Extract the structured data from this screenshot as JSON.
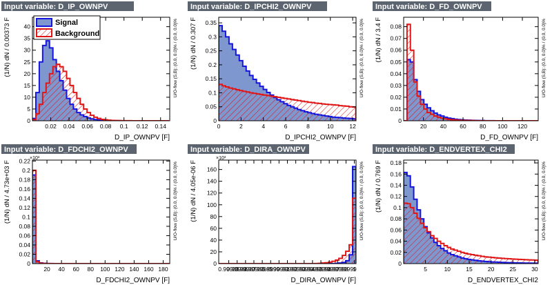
{
  "colors": {
    "title_bg": "#5c6470",
    "title_fg": "#ffffff",
    "signal_fill": "#7f97cf",
    "signal_line": "#1515dd",
    "background_line": "#e01515",
    "background_hatch": "#e01515"
  },
  "legend": {
    "signal": "Signal",
    "background": "Background"
  },
  "chart_data": [
    {
      "type": "histogram",
      "title": "Input variable: D_IP_OWNPV",
      "xlabel": "D_IP_OWNPV",
      "xunit": "[F]",
      "ylabel": "(1/N) dN / 0.00373 F",
      "uoflow": "U/O-flow (S,B): (0.0, 0.0)% / (0.0, 0.0)%",
      "xlim": [
        0,
        0.15
      ],
      "ylim": [
        0,
        44
      ],
      "xticks": [
        0.02,
        0.04,
        0.06,
        0.08,
        0.1,
        0.12,
        0.14
      ],
      "xticklabels": [
        "0.02",
        "0.04",
        "0.06",
        "0.08",
        "0.1",
        "0.12",
        "0.14"
      ],
      "yticks": [
        0,
        5,
        10,
        15,
        20,
        25,
        30,
        35,
        40
      ],
      "yticklabels": [
        "0",
        "5",
        "10",
        "15",
        "20",
        "25",
        "30",
        "35",
        "40"
      ],
      "exponent": "",
      "has_legend": true,
      "bin_edges": [
        0,
        0.00373,
        0.00746,
        0.01119,
        0.01492,
        0.01865,
        0.02238,
        0.02611,
        0.02984,
        0.03357,
        0.0373,
        0.04103,
        0.04476,
        0.04849,
        0.05222,
        0.05595,
        0.05968,
        0.06341,
        0.06714,
        0.07087,
        0.0746,
        0.07833,
        0.08206,
        0.08579,
        0.08952,
        0.09325,
        0.09698,
        0.10071,
        0.10444,
        0.10817,
        0.1119,
        0.11563,
        0.11936,
        0.12309,
        0.12682,
        0.13055,
        0.13428,
        0.13801,
        0.14174,
        0.14547,
        0.1492
      ],
      "series": [
        {
          "name": "Signal",
          "values": [
            1,
            12,
            25,
            32,
            34,
            31,
            26,
            21,
            17,
            13,
            9.5,
            7,
            5,
            3.5,
            2.5,
            1.8,
            1.2,
            0.8,
            0.5,
            0.35,
            0.2,
            0.12,
            0.08,
            0.05,
            0.03,
            0.02,
            0.01,
            0.01,
            0,
            0,
            0,
            0,
            0,
            0,
            0,
            0,
            0,
            0,
            0,
            0
          ]
        },
        {
          "name": "Background",
          "values": [
            0.5,
            3,
            7,
            12,
            16,
            20,
            23,
            24,
            23,
            21,
            18,
            15,
            12,
            9.5,
            7,
            5,
            3.5,
            2.3,
            1.5,
            1,
            0.6,
            0.4,
            0.25,
            0.15,
            0.1,
            0.06,
            0.04,
            0.03,
            0.02,
            0.01,
            0.01,
            0,
            0,
            0,
            0,
            0,
            0,
            0,
            0,
            0
          ]
        }
      ]
    },
    {
      "type": "histogram",
      "title": "Input variable: D_IPCHI2_OWNPV",
      "xlabel": "D_IPCHI2_OWNPV",
      "xunit": "[F]",
      "ylabel": "(1/N) dN / 0.307 F",
      "uoflow": "U/O-flow (S,B): (0.0, 0.0)% / (0.0, 0.0)%",
      "xlim": [
        0,
        12.3
      ],
      "ylim": [
        0,
        0.37
      ],
      "xticks": [
        0,
        2,
        4,
        6,
        8,
        10,
        12
      ],
      "xticklabels": [
        "0",
        "2",
        "4",
        "6",
        "8",
        "10",
        "12"
      ],
      "yticks": [
        0,
        0.05,
        0.1,
        0.15,
        0.2,
        0.25,
        0.3,
        0.35
      ],
      "yticklabels": [
        "0",
        "0.05",
        "0.1",
        "0.15",
        "0.2",
        "0.25",
        "0.3",
        "0.35"
      ],
      "exponent": "",
      "has_legend": false,
      "bin_edges": [
        0,
        0.307,
        0.614,
        0.921,
        1.228,
        1.535,
        1.842,
        2.149,
        2.456,
        2.763,
        3.07,
        3.377,
        3.684,
        3.991,
        4.298,
        4.605,
        4.912,
        5.219,
        5.526,
        5.833,
        6.14,
        6.447,
        6.754,
        7.061,
        7.368,
        7.675,
        7.982,
        8.289,
        8.596,
        8.903,
        9.21,
        9.517,
        9.824,
        10.131,
        10.438,
        10.745,
        11.052,
        11.359,
        11.666,
        11.973,
        12.28
      ],
      "series": [
        {
          "name": "Signal",
          "values": [
            0.34,
            0.32,
            0.3,
            0.275,
            0.255,
            0.235,
            0.215,
            0.195,
            0.178,
            0.162,
            0.148,
            0.135,
            0.123,
            0.112,
            0.101,
            0.092,
            0.083,
            0.075,
            0.068,
            0.061,
            0.055,
            0.05,
            0.045,
            0.04,
            0.036,
            0.032,
            0.029,
            0.026,
            0.023,
            0.021,
            0.019,
            0.017,
            0.015,
            0.013,
            0.012,
            0.011,
            0.01,
            0.009,
            0.008,
            0.007
          ]
        },
        {
          "name": "Background",
          "values": [
            0.13,
            0.125,
            0.121,
            0.117,
            0.114,
            0.111,
            0.108,
            0.105,
            0.103,
            0.1,
            0.098,
            0.096,
            0.094,
            0.092,
            0.09,
            0.088,
            0.086,
            0.084,
            0.082,
            0.08,
            0.078,
            0.076,
            0.074,
            0.072,
            0.07,
            0.068,
            0.066,
            0.065,
            0.063,
            0.062,
            0.06,
            0.059,
            0.058,
            0.057,
            0.056,
            0.054,
            0.053,
            0.052,
            0.05,
            0.049
          ]
        }
      ]
    },
    {
      "type": "histogram",
      "title": "Input variable: D_FD_OWNPV",
      "xlabel": "D_FD_OWNPV",
      "xunit": "[F]",
      "ylabel": "(1/N) dN / 3.4 F",
      "uoflow": "U/O-flow (S,B): (0.0, 0.0)% / (0.0, 0.0)%",
      "xlim": [
        0,
        136
      ],
      "ylim": [
        0,
        0.088
      ],
      "xticks": [
        20,
        40,
        60,
        80,
        100,
        120
      ],
      "xticklabels": [
        "20",
        "40",
        "60",
        "80",
        "100",
        "120"
      ],
      "yticks": [
        0,
        0.01,
        0.02,
        0.03,
        0.04,
        0.05,
        0.06,
        0.07,
        0.08
      ],
      "yticklabels": [
        "0",
        "0.01",
        "0.02",
        "0.03",
        "0.04",
        "0.05",
        "0.06",
        "0.07",
        "0.08"
      ],
      "exponent": "",
      "has_legend": false,
      "bin_edges": [
        0,
        3.4,
        6.8,
        10.2,
        13.6,
        17,
        20.4,
        23.8,
        27.2,
        30.6,
        34,
        37.4,
        40.8,
        44.2,
        47.6,
        51,
        54.4,
        57.8,
        61.2,
        64.6,
        68,
        71.4,
        74.8,
        78.2,
        81.6,
        85,
        88.4,
        91.8,
        95.2,
        98.6,
        102,
        105.4,
        108.8,
        112.2,
        115.6,
        119,
        122.4,
        125.8,
        129.2,
        132.6,
        136
      ],
      "series": [
        {
          "name": "Signal",
          "values": [
            0,
            0.052,
            0.05,
            0.035,
            0.025,
            0.018,
            0.014,
            0.011,
            0.0085,
            0.0065,
            0.005,
            0.004,
            0.003,
            0.0023,
            0.0018,
            0.0013,
            0.001,
            0.0008,
            0.0006,
            0.0005,
            0.0004,
            0.0003,
            0.0002,
            0.0002,
            0.0001,
            0.0001,
            0.0001,
            0,
            0,
            0,
            0,
            0,
            0,
            0,
            0,
            0,
            0,
            0,
            0,
            0
          ]
        },
        {
          "name": "Background",
          "values": [
            0,
            0.082,
            0.06,
            0.033,
            0.021,
            0.014,
            0.01,
            0.007,
            0.0055,
            0.004,
            0.003,
            0.0022,
            0.0016,
            0.0012,
            0.0009,
            0.0007,
            0.0005,
            0.0004,
            0.0003,
            0.0002,
            0.0002,
            0.0001,
            0.0001,
            0,
            0,
            0,
            0,
            0,
            0,
            0,
            0,
            0,
            0,
            0,
            0,
            0,
            0,
            0,
            0,
            0
          ]
        }
      ]
    },
    {
      "type": "histogram",
      "title": "Input variable: D_FDCHI2_OWNPV",
      "xlabel": "D_FDCHI2_OWNPV",
      "xunit": "[F]",
      "ylabel": "(1/N) dN / 4.73e+03 F",
      "uoflow": "U/O-flow (S,B): (0.0, 0.0)% / (0.0, 0.0)%",
      "xlim": [
        0,
        189
      ],
      "ylim": [
        0,
        0.222
      ],
      "xticks": [
        20,
        40,
        60,
        80,
        100,
        120,
        140,
        160,
        180
      ],
      "xticklabels": [
        "20",
        "40",
        "60",
        "80",
        "100",
        "120",
        "140",
        "160",
        "180"
      ],
      "yticks": [
        0,
        0.02,
        0.04,
        0.06,
        0.08,
        0.1,
        0.12,
        0.14,
        0.16,
        0.18,
        0.2,
        0.22
      ],
      "yticklabels": [
        "0",
        "0.02",
        "0.04",
        "0.06",
        "0.08",
        "0.1",
        "0.12",
        "0.14",
        "0.16",
        "0.18",
        "0.2",
        "0.22"
      ],
      "exponent": "×10³",
      "has_legend": false,
      "bin_edges": [
        0,
        4.73,
        9.46,
        14.19,
        18.92,
        23.65,
        28.38,
        33.11,
        37.84,
        42.57,
        47.3,
        52.03,
        56.76,
        61.49,
        66.22,
        70.95,
        75.68,
        80.41,
        85.14,
        89.87,
        94.6,
        99.33,
        104.06,
        108.79,
        113.52,
        118.25,
        122.98,
        127.71,
        132.44,
        137.17,
        141.9,
        146.63,
        151.36,
        156.09,
        160.82,
        165.55,
        170.28,
        175.01,
        179.74,
        184.47,
        189.2
      ],
      "series": [
        {
          "name": "Signal",
          "values": [
            0.19,
            0.006,
            0.0015,
            0.0005,
            0.0002,
            0.0001,
            0,
            0,
            0,
            0,
            0,
            0,
            0,
            0,
            0,
            0,
            0,
            0,
            0,
            0,
            0,
            0,
            0,
            0,
            0,
            0,
            0,
            0,
            0,
            0,
            0,
            0,
            0,
            0,
            0,
            0,
            0,
            0,
            0,
            0
          ]
        },
        {
          "name": "Background",
          "values": [
            0.2,
            0.004,
            0.001,
            0.0003,
            0.0001,
            0,
            0,
            0,
            0,
            0,
            0,
            0,
            0,
            0,
            0,
            0,
            0,
            0,
            0,
            0,
            0,
            0,
            0,
            0,
            0,
            0,
            0,
            0,
            0,
            0,
            0,
            0,
            0,
            0,
            0,
            0,
            0,
            0,
            0,
            0
          ]
        }
      ]
    },
    {
      "type": "histogram",
      "title": "Input variable: D_DIRA_OWNPV",
      "xlabel": "D_DIRA_OWNPV",
      "xunit": "[F]",
      "ylabel": "(1/N) dN / 4.05e-06 F",
      "uoflow": "U/O-flow (S,B): (0.0, 0.0)% / (0.0, 0.0)%",
      "xlim": [
        0.999838,
        1.000002
      ],
      "ylim": [
        0,
        176
      ],
      "xticks": [
        0.99985,
        0.99986,
        0.99987,
        0.99988,
        0.99989,
        0.9999,
        0.99991,
        0.99992,
        0.99993,
        0.99994,
        0.99995,
        0.99996,
        0.99997,
        0.99998,
        0.99999,
        1
      ],
      "xticklabels": [
        "0.99985",
        "0.99986",
        "0.99987",
        "0.99988",
        "0.99989",
        "0.9999",
        "0.99991",
        "0.99992",
        "0.99993",
        "0.99994",
        "0.99995",
        "0.99996",
        "0.99997",
        "0.99998",
        "0.99999",
        "1"
      ],
      "yticks": [
        0,
        20,
        40,
        60,
        80,
        100,
        120,
        140,
        160
      ],
      "yticklabels": [
        "0",
        "20",
        "40",
        "60",
        "80",
        "100",
        "120",
        "140",
        "160"
      ],
      "exponent": "×10³",
      "has_legend": false,
      "bin_edges": [
        0.999838,
        0.9998421,
        0.9998462,
        0.9998503,
        0.9998544,
        0.9998585,
        0.9998626,
        0.9998667,
        0.9998708,
        0.9998749,
        0.999879,
        0.9998831,
        0.9998872,
        0.9998913,
        0.9998954,
        0.9998995,
        0.9999036,
        0.9999077,
        0.9999118,
        0.9999159,
        0.99992,
        0.9999241,
        0.9999282,
        0.9999323,
        0.9999364,
        0.9999405,
        0.9999446,
        0.9999487,
        0.9999528,
        0.9999569,
        0.999961,
        0.9999651,
        0.9999692,
        0.9999733,
        0.9999774,
        0.9999815,
        0.9999856,
        0.9999897,
        0.9999938,
        0.9999979,
        1.000002
      ],
      "series": [
        {
          "name": "Signal",
          "values": [
            0,
            0,
            0,
            0,
            0,
            0,
            0,
            0,
            0,
            0,
            0,
            0,
            0,
            0,
            0,
            0,
            0,
            0,
            0,
            0,
            0,
            0,
            0,
            0,
            0,
            0,
            0,
            0,
            0,
            0,
            0,
            0,
            0,
            0,
            0.5,
            1,
            2,
            5,
            15,
            165
          ]
        },
        {
          "name": "Background",
          "values": [
            0,
            0,
            0,
            0,
            0,
            0,
            0,
            0,
            0,
            0,
            0,
            0,
            0,
            0,
            0,
            0,
            0,
            0,
            0,
            0,
            0,
            0,
            0,
            0,
            0,
            0,
            0,
            0,
            0.2,
            0.5,
            1,
            1.5,
            2.5,
            4,
            6,
            9,
            14,
            21,
            32,
            111
          ]
        }
      ]
    },
    {
      "type": "histogram",
      "title": "Input variable: D_ENDVERTEX_CHI2",
      "xlabel": "D_ENDVERTEX_CHI2",
      "xunit": "",
      "ylabel": "(1/N) dN / 0.769 F",
      "uoflow": "U/O-flow (S,B): (0.0, 0.0)% / (0.0, 0.0)%",
      "xlim": [
        0,
        30.8
      ],
      "ylim": [
        0,
        0.185
      ],
      "xticks": [
        5,
        10,
        15,
        20,
        25,
        30
      ],
      "xticklabels": [
        "5",
        "10",
        "15",
        "20",
        "25",
        "30"
      ],
      "yticks": [
        0,
        0.02,
        0.04,
        0.06,
        0.08,
        0.1,
        0.12,
        0.14,
        0.16,
        0.18
      ],
      "yticklabels": [
        "0",
        "0.02",
        "0.04",
        "0.06",
        "0.08",
        "0.1",
        "0.12",
        "0.14",
        "0.16",
        "0.18"
      ],
      "exponent": "",
      "has_legend": false,
      "bin_edges": [
        0,
        0.769,
        1.538,
        2.307,
        3.076,
        3.845,
        4.614,
        5.383,
        6.152,
        6.921,
        7.69,
        8.459,
        9.228,
        9.997,
        10.766,
        11.535,
        12.304,
        13.073,
        13.842,
        14.611,
        15.38,
        16.149,
        16.918,
        17.687,
        18.456,
        19.225,
        19.994,
        20.763,
        21.532,
        22.301,
        23.07,
        23.839,
        24.608,
        25.377,
        26.146,
        26.915,
        27.684,
        28.453,
        29.222,
        29.991,
        30.76
      ],
      "series": [
        {
          "name": "Signal",
          "values": [
            0.163,
            0.157,
            0.137,
            0.115,
            0.096,
            0.08,
            0.066,
            0.055,
            0.046,
            0.038,
            0.032,
            0.027,
            0.023,
            0.019,
            0.016,
            0.014,
            0.012,
            0.01,
            0.0088,
            0.0076,
            0.0066,
            0.0058,
            0.005,
            0.0044,
            0.0039,
            0.0034,
            0.003,
            0.0027,
            0.0024,
            0.0021,
            0.0019,
            0.0017,
            0.0015,
            0.0013,
            0.0012,
            0.0011,
            0.001,
            0.0009,
            0.0008,
            0.0007
          ]
        },
        {
          "name": "Background",
          "values": [
            0.108,
            0.107,
            0.1,
            0.09,
            0.081,
            0.072,
            0.064,
            0.057,
            0.05,
            0.045,
            0.04,
            0.036,
            0.032,
            0.029,
            0.026,
            0.024,
            0.022,
            0.02,
            0.0185,
            0.017,
            0.016,
            0.015,
            0.014,
            0.013,
            0.012,
            0.0115,
            0.011,
            0.0104,
            0.0099,
            0.0094,
            0.009,
            0.0086,
            0.0082,
            0.0078,
            0.0075,
            0.0072,
            0.0069,
            0.0066,
            0.0064,
            0.0062
          ]
        }
      ]
    }
  ]
}
